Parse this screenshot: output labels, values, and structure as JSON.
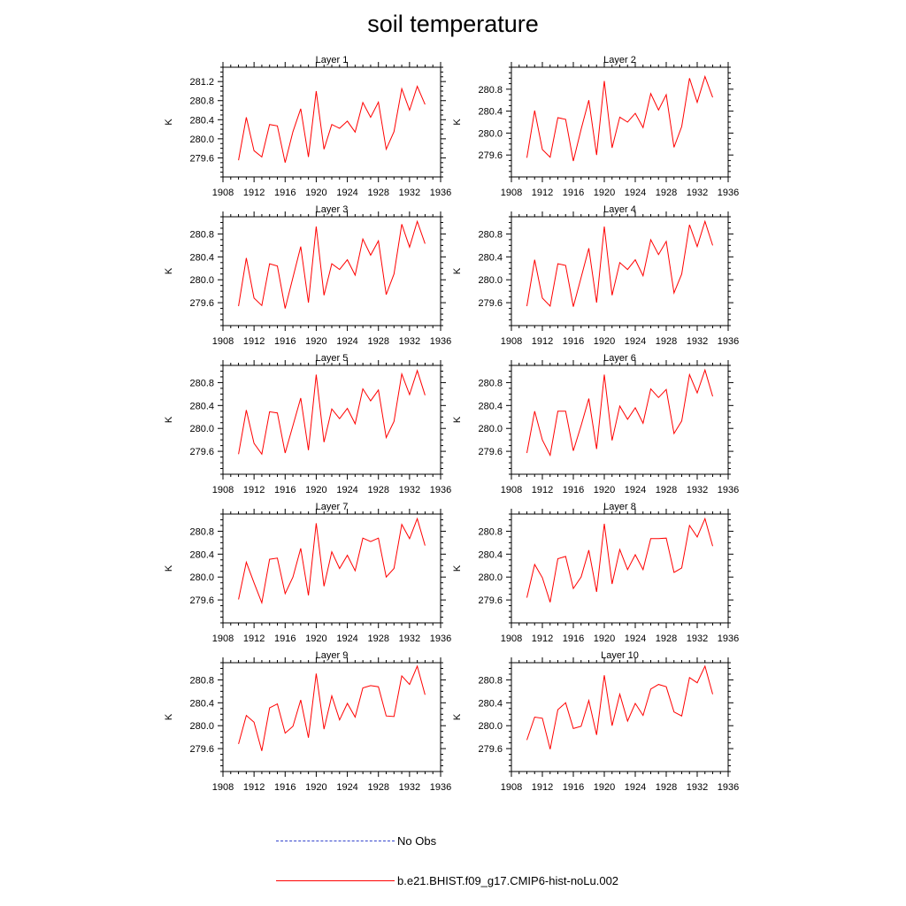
{
  "title": "soil temperature",
  "colors": {
    "model": "#ff0000",
    "obs": "#3344cc",
    "axis": "#000000"
  },
  "legend": [
    {
      "label": "No Obs",
      "style": "dashed",
      "color": "#3344cc"
    },
    {
      "label": "b.e21.BHIST.f09_g17.CMIP6-hist-noLu.002",
      "style": "solid",
      "color": "#ff0000"
    }
  ],
  "chart_data": [
    {
      "type": "line",
      "title": "Layer 1",
      "ylabel": "K",
      "xlim": [
        1908,
        1936
      ],
      "xticks": [
        1908,
        1912,
        1916,
        1920,
        1924,
        1928,
        1932,
        1936
      ],
      "ylim": [
        279.2,
        281.5
      ],
      "yticks": [
        279.6,
        280.0,
        280.4,
        280.8,
        281.2
      ],
      "x": [
        1910,
        1911,
        1912,
        1913,
        1914,
        1915,
        1916,
        1917,
        1918,
        1919,
        1920,
        1921,
        1922,
        1923,
        1924,
        1925,
        1926,
        1927,
        1928,
        1929,
        1930,
        1931,
        1932,
        1933,
        1934
      ],
      "series": [
        {
          "name": "b.e21.BHIST.f09_g17.CMIP6-hist-noLu.002",
          "values": [
            279.55,
            280.45,
            279.75,
            279.62,
            280.3,
            280.27,
            279.5,
            280.15,
            280.63,
            279.62,
            281.0,
            279.78,
            280.3,
            280.22,
            280.37,
            280.14,
            280.76,
            280.45,
            280.77,
            279.78,
            280.15,
            281.05,
            280.6,
            281.1,
            280.72
          ]
        }
      ]
    },
    {
      "type": "line",
      "title": "Layer 2",
      "ylabel": "K",
      "xlim": [
        1908,
        1936
      ],
      "xticks": [
        1908,
        1912,
        1916,
        1920,
        1924,
        1928,
        1932,
        1936
      ],
      "ylim": [
        279.2,
        281.2
      ],
      "yticks": [
        279.6,
        280.0,
        280.4,
        280.8
      ],
      "x": [
        1910,
        1911,
        1912,
        1913,
        1914,
        1915,
        1916,
        1917,
        1918,
        1919,
        1920,
        1921,
        1922,
        1923,
        1924,
        1925,
        1926,
        1927,
        1928,
        1929,
        1930,
        1931,
        1932,
        1933,
        1934
      ],
      "series": [
        {
          "name": "b.e21.BHIST.f09_g17.CMIP6-hist-noLu.002",
          "values": [
            279.55,
            280.41,
            279.7,
            279.56,
            280.28,
            280.25,
            279.49,
            280.07,
            280.6,
            279.6,
            280.95,
            279.73,
            280.29,
            280.2,
            280.36,
            280.1,
            280.72,
            280.42,
            280.7,
            279.74,
            280.12,
            281.0,
            280.56,
            281.03,
            280.65
          ]
        }
      ]
    },
    {
      "type": "line",
      "title": "Layer 3",
      "ylabel": "K",
      "xlim": [
        1908,
        1936
      ],
      "xticks": [
        1908,
        1912,
        1916,
        1920,
        1924,
        1928,
        1932,
        1936
      ],
      "ylim": [
        279.2,
        281.1
      ],
      "yticks": [
        279.6,
        280.0,
        280.4,
        280.8
      ],
      "x": [
        1910,
        1911,
        1912,
        1913,
        1914,
        1915,
        1916,
        1917,
        1918,
        1919,
        1920,
        1921,
        1922,
        1923,
        1924,
        1925,
        1926,
        1927,
        1928,
        1929,
        1930,
        1931,
        1932,
        1933,
        1934
      ],
      "series": [
        {
          "name": "b.e21.BHIST.f09_g17.CMIP6-hist-noLu.002",
          "values": [
            279.54,
            280.38,
            279.68,
            279.55,
            280.28,
            280.24,
            279.5,
            280.04,
            280.58,
            279.6,
            280.93,
            279.73,
            280.28,
            280.18,
            280.35,
            280.08,
            280.71,
            280.43,
            280.68,
            279.74,
            280.1,
            280.97,
            280.57,
            281.02,
            280.63
          ]
        }
      ]
    },
    {
      "type": "line",
      "title": "Layer 4",
      "ylabel": "K",
      "xlim": [
        1908,
        1936
      ],
      "xticks": [
        1908,
        1912,
        1916,
        1920,
        1924,
        1928,
        1932,
        1936
      ],
      "ylim": [
        279.2,
        281.1
      ],
      "yticks": [
        279.6,
        280.0,
        280.4,
        280.8
      ],
      "x": [
        1910,
        1911,
        1912,
        1913,
        1914,
        1915,
        1916,
        1917,
        1918,
        1919,
        1920,
        1921,
        1922,
        1923,
        1924,
        1925,
        1926,
        1927,
        1928,
        1929,
        1930,
        1931,
        1932,
        1933,
        1934
      ],
      "series": [
        {
          "name": "b.e21.BHIST.f09_g17.CMIP6-hist-noLu.002",
          "values": [
            279.54,
            280.35,
            279.68,
            279.54,
            280.28,
            280.25,
            279.53,
            280.04,
            280.55,
            279.6,
            280.93,
            279.73,
            280.3,
            280.18,
            280.35,
            280.07,
            280.7,
            280.44,
            280.67,
            279.77,
            280.1,
            280.96,
            280.58,
            281.02,
            280.6
          ]
        }
      ]
    },
    {
      "type": "line",
      "title": "Layer 5",
      "ylabel": "K",
      "xlim": [
        1908,
        1936
      ],
      "xticks": [
        1908,
        1912,
        1916,
        1920,
        1924,
        1928,
        1932,
        1936
      ],
      "ylim": [
        279.2,
        281.1
      ],
      "yticks": [
        279.6,
        280.0,
        280.4,
        280.8
      ],
      "x": [
        1910,
        1911,
        1912,
        1913,
        1914,
        1915,
        1916,
        1917,
        1918,
        1919,
        1920,
        1921,
        1922,
        1923,
        1924,
        1925,
        1926,
        1927,
        1928,
        1929,
        1930,
        1931,
        1932,
        1933,
        1934
      ],
      "series": [
        {
          "name": "b.e21.BHIST.f09_g17.CMIP6-hist-noLu.002",
          "values": [
            279.55,
            280.32,
            279.74,
            279.55,
            280.29,
            280.27,
            279.57,
            280.05,
            280.53,
            279.62,
            280.94,
            279.76,
            280.34,
            280.17,
            280.35,
            280.08,
            280.69,
            280.48,
            280.67,
            279.84,
            280.12,
            280.95,
            280.59,
            281.01,
            280.58
          ]
        }
      ]
    },
    {
      "type": "line",
      "title": "Layer 6",
      "ylabel": "K",
      "xlim": [
        1908,
        1936
      ],
      "xticks": [
        1908,
        1912,
        1916,
        1920,
        1924,
        1928,
        1932,
        1936
      ],
      "ylim": [
        279.2,
        281.1
      ],
      "yticks": [
        279.6,
        280.0,
        280.4,
        280.8
      ],
      "x": [
        1910,
        1911,
        1912,
        1913,
        1914,
        1915,
        1916,
        1917,
        1918,
        1919,
        1920,
        1921,
        1922,
        1923,
        1924,
        1925,
        1926,
        1927,
        1928,
        1929,
        1930,
        1931,
        1932,
        1933,
        1934
      ],
      "series": [
        {
          "name": "b.e21.BHIST.f09_g17.CMIP6-hist-noLu.002",
          "values": [
            279.57,
            280.3,
            279.8,
            279.53,
            280.3,
            280.3,
            279.61,
            280.05,
            280.52,
            279.64,
            280.94,
            279.79,
            280.39,
            280.16,
            280.36,
            280.09,
            280.69,
            280.54,
            280.68,
            279.91,
            280.13,
            280.94,
            280.62,
            281.02,
            280.56
          ]
        }
      ]
    },
    {
      "type": "line",
      "title": "Layer 7",
      "ylabel": "K",
      "xlim": [
        1908,
        1936
      ],
      "xticks": [
        1908,
        1912,
        1916,
        1920,
        1924,
        1928,
        1932,
        1936
      ],
      "ylim": [
        279.2,
        281.1
      ],
      "yticks": [
        279.6,
        280.0,
        280.4,
        280.8
      ],
      "x": [
        1910,
        1911,
        1912,
        1913,
        1914,
        1915,
        1916,
        1917,
        1918,
        1919,
        1920,
        1921,
        1922,
        1923,
        1924,
        1925,
        1926,
        1927,
        1928,
        1929,
        1930,
        1931,
        1932,
        1933,
        1934
      ],
      "series": [
        {
          "name": "b.e21.BHIST.f09_g17.CMIP6-hist-noLu.002",
          "values": [
            279.61,
            280.26,
            279.9,
            279.55,
            280.31,
            280.33,
            279.71,
            280.0,
            280.5,
            279.68,
            280.94,
            279.84,
            280.44,
            280.15,
            280.38,
            280.11,
            280.68,
            280.62,
            280.68,
            280.0,
            280.15,
            280.92,
            280.67,
            281.02,
            280.55
          ]
        }
      ]
    },
    {
      "type": "line",
      "title": "Layer 8",
      "ylabel": "K",
      "xlim": [
        1908,
        1936
      ],
      "xticks": [
        1908,
        1912,
        1916,
        1920,
        1924,
        1928,
        1932,
        1936
      ],
      "ylim": [
        279.2,
        281.1
      ],
      "yticks": [
        279.6,
        280.0,
        280.4,
        280.8
      ],
      "x": [
        1910,
        1911,
        1912,
        1913,
        1914,
        1915,
        1916,
        1917,
        1918,
        1919,
        1920,
        1921,
        1922,
        1923,
        1924,
        1925,
        1926,
        1927,
        1928,
        1929,
        1930,
        1931,
        1932,
        1933,
        1934
      ],
      "series": [
        {
          "name": "b.e21.BHIST.f09_g17.CMIP6-hist-noLu.002",
          "values": [
            279.64,
            280.22,
            279.99,
            279.56,
            280.32,
            280.36,
            279.8,
            280.0,
            280.47,
            279.74,
            280.93,
            279.88,
            280.48,
            280.13,
            280.39,
            280.13,
            280.67,
            280.67,
            280.68,
            280.08,
            280.16,
            280.9,
            280.7,
            281.02,
            280.54
          ]
        }
      ]
    },
    {
      "type": "line",
      "title": "Layer 9",
      "ylabel": "K",
      "xlim": [
        1908,
        1936
      ],
      "xticks": [
        1908,
        1912,
        1916,
        1920,
        1924,
        1928,
        1932,
        1936
      ],
      "ylim": [
        279.2,
        281.1
      ],
      "yticks": [
        279.6,
        280.0,
        280.4,
        280.8
      ],
      "x": [
        1910,
        1911,
        1912,
        1913,
        1914,
        1915,
        1916,
        1917,
        1918,
        1919,
        1920,
        1921,
        1922,
        1923,
        1924,
        1925,
        1926,
        1927,
        1928,
        1929,
        1930,
        1931,
        1932,
        1933,
        1934
      ],
      "series": [
        {
          "name": "b.e21.BHIST.f09_g17.CMIP6-hist-noLu.002",
          "values": [
            279.68,
            280.18,
            280.06,
            279.56,
            280.31,
            280.38,
            279.87,
            279.99,
            280.45,
            279.79,
            280.91,
            279.94,
            280.52,
            280.1,
            280.39,
            280.15,
            280.66,
            280.7,
            280.68,
            280.17,
            280.16,
            280.87,
            280.72,
            281.04,
            280.54
          ]
        }
      ]
    },
    {
      "type": "line",
      "title": "Layer 10",
      "ylabel": "K",
      "xlim": [
        1908,
        1936
      ],
      "xticks": [
        1908,
        1912,
        1916,
        1920,
        1924,
        1928,
        1932,
        1936
      ],
      "ylim": [
        279.2,
        281.1
      ],
      "yticks": [
        279.6,
        280.0,
        280.4,
        280.8
      ],
      "x": [
        1910,
        1911,
        1912,
        1913,
        1914,
        1915,
        1916,
        1917,
        1918,
        1919,
        1920,
        1921,
        1922,
        1923,
        1924,
        1925,
        1926,
        1927,
        1928,
        1929,
        1930,
        1931,
        1932,
        1933,
        1934
      ],
      "series": [
        {
          "name": "b.e21.BHIST.f09_g17.CMIP6-hist-noLu.002",
          "values": [
            279.75,
            280.15,
            280.13,
            279.59,
            280.28,
            280.4,
            279.95,
            279.99,
            280.44,
            279.84,
            280.88,
            280.0,
            280.55,
            280.08,
            280.39,
            280.18,
            280.64,
            280.72,
            280.68,
            280.24,
            280.17,
            280.84,
            280.75,
            281.04,
            280.55
          ]
        }
      ]
    }
  ]
}
